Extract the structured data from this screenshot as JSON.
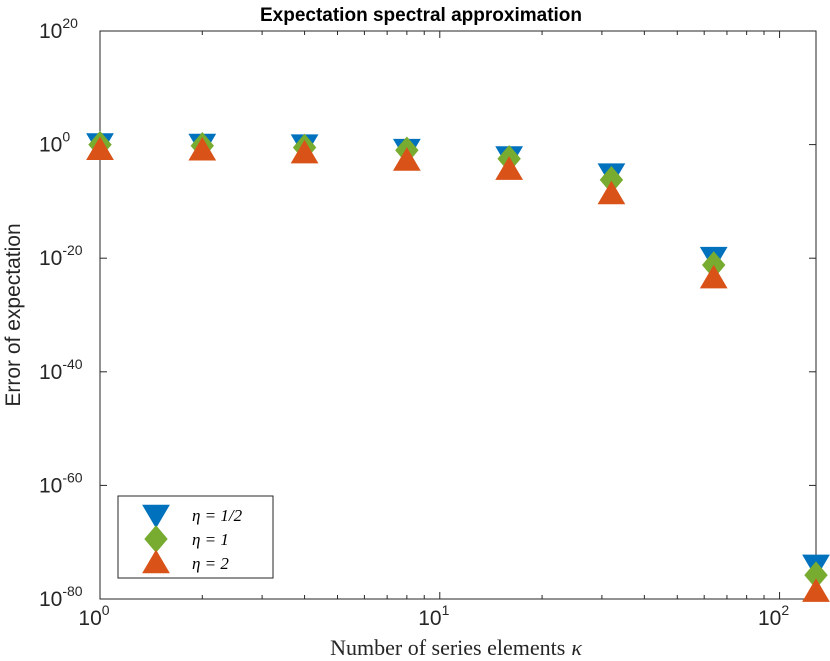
{
  "chart_data": {
    "type": "scatter",
    "title": "Expectation spectral approximation",
    "xlabel": "Number of series elements",
    "xlabel_symbol": "κ",
    "ylabel": "Error of expectation",
    "xscale": "log",
    "yscale": "log",
    "xlim": [
      1,
      128
    ],
    "ylim_exponent": [
      -80,
      20
    ],
    "x_ticks": [
      {
        "base": "10",
        "exp": "0",
        "value": 1
      },
      {
        "base": "10",
        "exp": "1",
        "value": 10
      },
      {
        "base": "10",
        "exp": "2",
        "value": 100
      }
    ],
    "y_ticks": [
      {
        "base": "10",
        "exp": "20",
        "value": 20
      },
      {
        "base": "10",
        "exp": "0",
        "value": 0
      },
      {
        "base": "10",
        "exp": "-20",
        "value": -20
      },
      {
        "base": "10",
        "exp": "-40",
        "value": -40
      },
      {
        "base": "10",
        "exp": "-60",
        "value": -60
      },
      {
        "base": "10",
        "exp": "-80",
        "value": -80
      }
    ],
    "x": [
      1,
      2,
      4,
      8,
      16,
      32,
      64,
      128
    ],
    "series": [
      {
        "name": "η = 1/2",
        "marker": "triangle-down",
        "color": "#0072BD",
        "log10_values": [
          0.2,
          0.1,
          0,
          -0.8,
          -2.1,
          -5.1,
          -19.8,
          -74.0
        ]
      },
      {
        "name": "η = 1",
        "marker": "diamond",
        "color": "#77AC30",
        "log10_values": [
          0,
          -0.2,
          -0.5,
          -1.0,
          -2.5,
          -6.2,
          -21.2,
          -75.8
        ]
      },
      {
        "name": "η = 2",
        "marker": "triangle-up",
        "color": "#D95319",
        "log10_values": [
          -0.9,
          -1.0,
          -1.5,
          -2.8,
          -4.4,
          -8.7,
          -23.5,
          -78.7
        ]
      }
    ],
    "legend_position": "bottom-left"
  }
}
